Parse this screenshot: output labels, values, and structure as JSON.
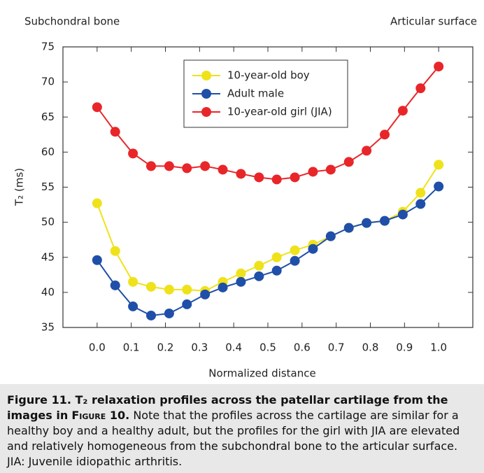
{
  "chart_data": {
    "type": "line",
    "left_label": "Subchondral bone",
    "right_label": "Articular surface",
    "xlabel": "Normalized distance",
    "ylabel": "T₂ (ms)",
    "x": [
      0,
      0.053,
      0.105,
      0.158,
      0.211,
      0.263,
      0.316,
      0.368,
      0.421,
      0.474,
      0.526,
      0.579,
      0.632,
      0.684,
      0.737,
      0.789,
      0.842,
      0.895,
      0.947,
      1
    ],
    "series": [
      {
        "name": "10-year-old boy",
        "color": "#efe21a",
        "values": [
          52.7,
          45.9,
          41.5,
          40.8,
          40.4,
          40.4,
          40.2,
          41.5,
          42.7,
          43.8,
          45.0,
          46.0,
          46.8,
          48.0,
          49.2,
          49.9,
          50.2,
          51.5,
          54.2,
          58.2
        ]
      },
      {
        "name": "Adult male",
        "color": "#1f4fa8",
        "values": [
          44.6,
          41.0,
          38.0,
          36.7,
          37.0,
          38.3,
          39.7,
          40.7,
          41.5,
          42.3,
          43.1,
          44.5,
          46.2,
          48.0,
          49.2,
          49.9,
          50.2,
          51.1,
          52.6,
          55.1
        ]
      },
      {
        "name": "10-year-old girl (JIA)",
        "color": "#e8262a",
        "values": [
          66.4,
          62.9,
          59.8,
          58.0,
          58.0,
          57.7,
          58.0,
          57.5,
          56.9,
          56.4,
          56.1,
          56.4,
          57.2,
          57.5,
          58.6,
          60.2,
          62.5,
          65.9,
          69.1,
          72.2
        ]
      }
    ],
    "xlim": [
      -0.1,
      1.1
    ],
    "xticks": [
      {
        "value": 0,
        "label": "0.0"
      },
      0.1,
      0.2,
      0.3,
      0.4,
      0.5,
      0.6,
      0.7,
      0.8,
      0.9,
      {
        "value": 1,
        "label": "1.0"
      }
    ],
    "ylim": [
      35,
      75
    ],
    "yticks": [
      35,
      40,
      45,
      50,
      55,
      60,
      65,
      70,
      75
    ],
    "grid": false,
    "legend": "upper center"
  },
  "caption": {
    "bold": "Figure 11. T₂ relaxation profiles across the patellar cartilage from the images in",
    "figure_ref": "Figure 10.",
    "text": "Note that the profiles across the cartilage are similar for a healthy boy and a healthy adult, but the profiles for the girl with JIA are elevated and relatively homogeneous from the subchondral bone to the articular surface. JIA: Juvenile idiopathic arthritis."
  }
}
